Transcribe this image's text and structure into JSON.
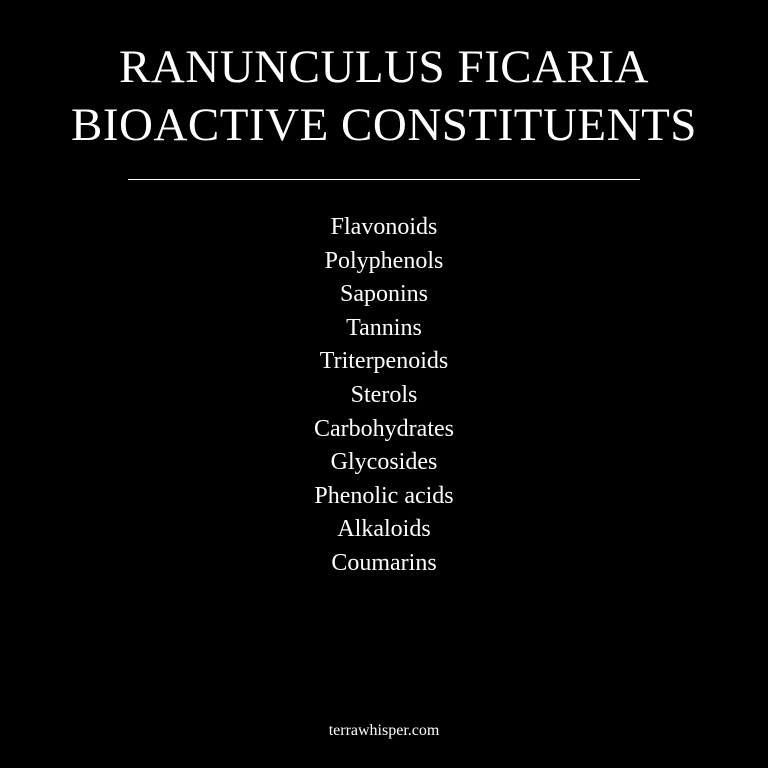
{
  "colors": {
    "background": "#000000",
    "text": "#ffffff"
  },
  "title": {
    "line1": "RANUNCULUS FICARIA",
    "line2": "BIOACTIVE CONSTITUENTS"
  },
  "constituents": [
    "Flavonoids",
    "Polyphenols",
    "Saponins",
    "Tannins",
    "Triterpenoids",
    "Sterols",
    "Carbohydrates",
    "Glycosides",
    "Phenolic acids",
    "Alkaloids",
    "Coumarins"
  ],
  "footer": {
    "website": "terrawhisper.com"
  }
}
